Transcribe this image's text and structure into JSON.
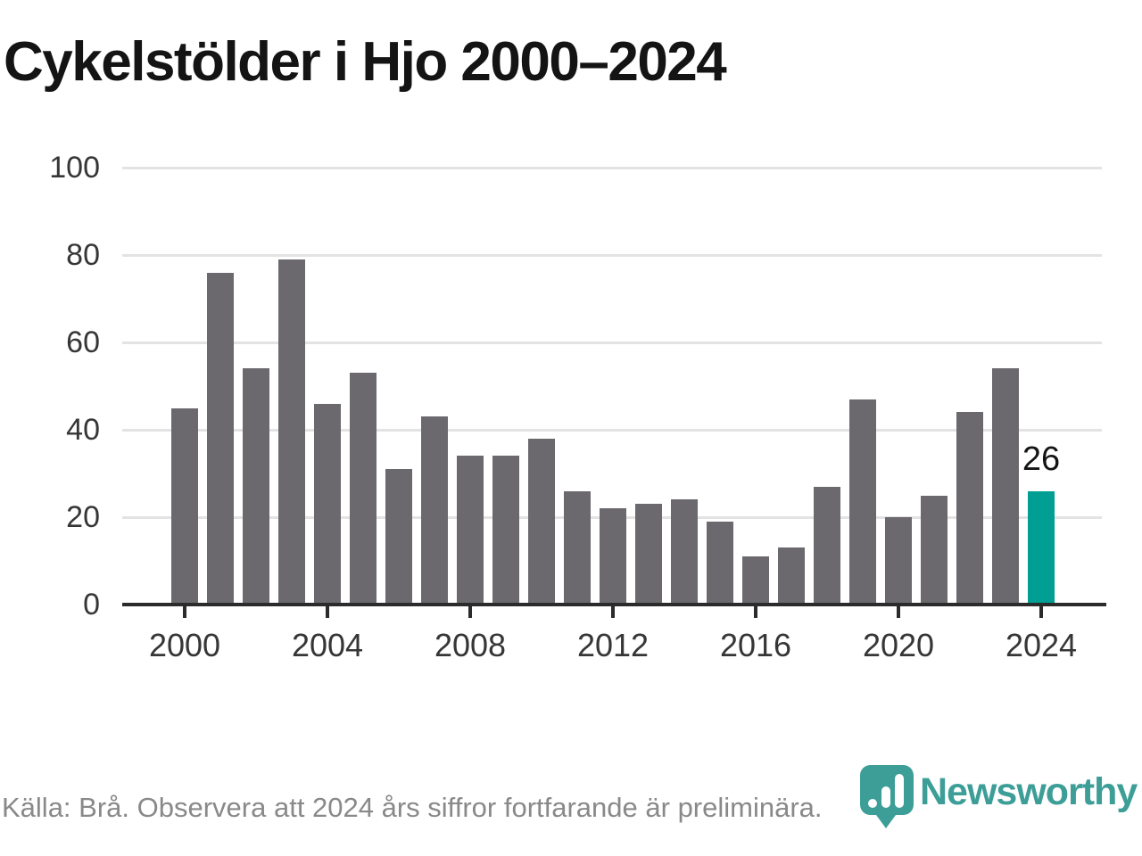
{
  "title": "Cykelstölder i Hjo 2000–2024",
  "chart_data": {
    "type": "bar",
    "title": "Cykelstölder i Hjo 2000–2024",
    "categories": [
      2000,
      2001,
      2002,
      2003,
      2004,
      2005,
      2006,
      2007,
      2008,
      2009,
      2010,
      2011,
      2012,
      2013,
      2014,
      2015,
      2016,
      2017,
      2018,
      2019,
      2020,
      2021,
      2022,
      2023,
      2024
    ],
    "values": [
      45,
      76,
      54,
      79,
      46,
      53,
      31,
      43,
      34,
      34,
      38,
      26,
      22,
      23,
      24,
      19,
      11,
      13,
      27,
      47,
      20,
      25,
      44,
      54,
      26
    ],
    "highlight": {
      "index": 24,
      "year": 2024,
      "value": 26,
      "label": "26"
    },
    "xlabel": "",
    "ylabel": "",
    "ylim": [
      0,
      100
    ],
    "yticks": [
      0,
      20,
      40,
      60,
      80,
      100
    ],
    "xticks": [
      2000,
      2004,
      2008,
      2012,
      2016,
      2020,
      2024
    ],
    "grid": true,
    "legend": "none",
    "colors": {
      "bar": "#6b696e",
      "highlight": "#009e93",
      "gridline": "#e3e3e3",
      "axis": "#2b2b2b",
      "tick_label": "#363636",
      "title": "#141414",
      "value_label": "#141414"
    }
  },
  "footer": {
    "source_text": "Källa: Brå. Observera att 2024 års siffror fortfarande är preliminära.",
    "brand": {
      "name": "Newsworthy",
      "color": "#3d9e98"
    }
  }
}
